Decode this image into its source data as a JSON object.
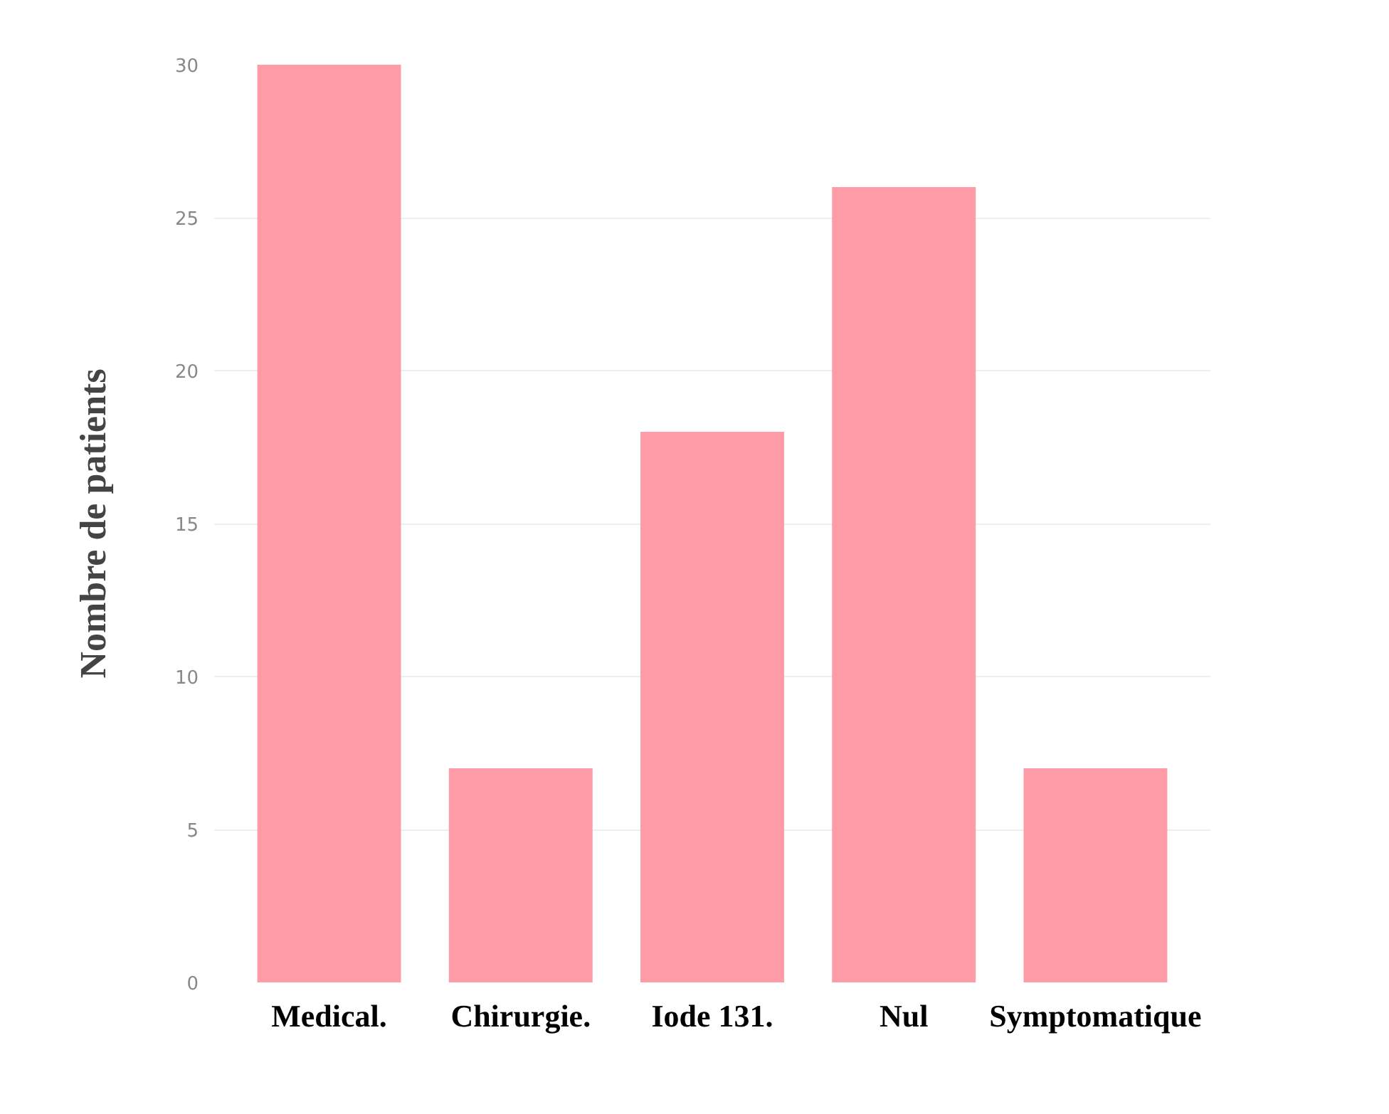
{
  "chart_data": {
    "type": "bar",
    "ylabel": "Nombre de patients",
    "categories": [
      "Medical.",
      "Chirurgie.",
      "Iode 131.",
      "Nul",
      "Symptomatique"
    ],
    "values": [
      30,
      7,
      18,
      26,
      7
    ],
    "color": "#fd9ca6",
    "ylim": [
      0,
      30
    ],
    "yticks": [
      0,
      5,
      10,
      15,
      20,
      25,
      30
    ],
    "grid": "y"
  }
}
